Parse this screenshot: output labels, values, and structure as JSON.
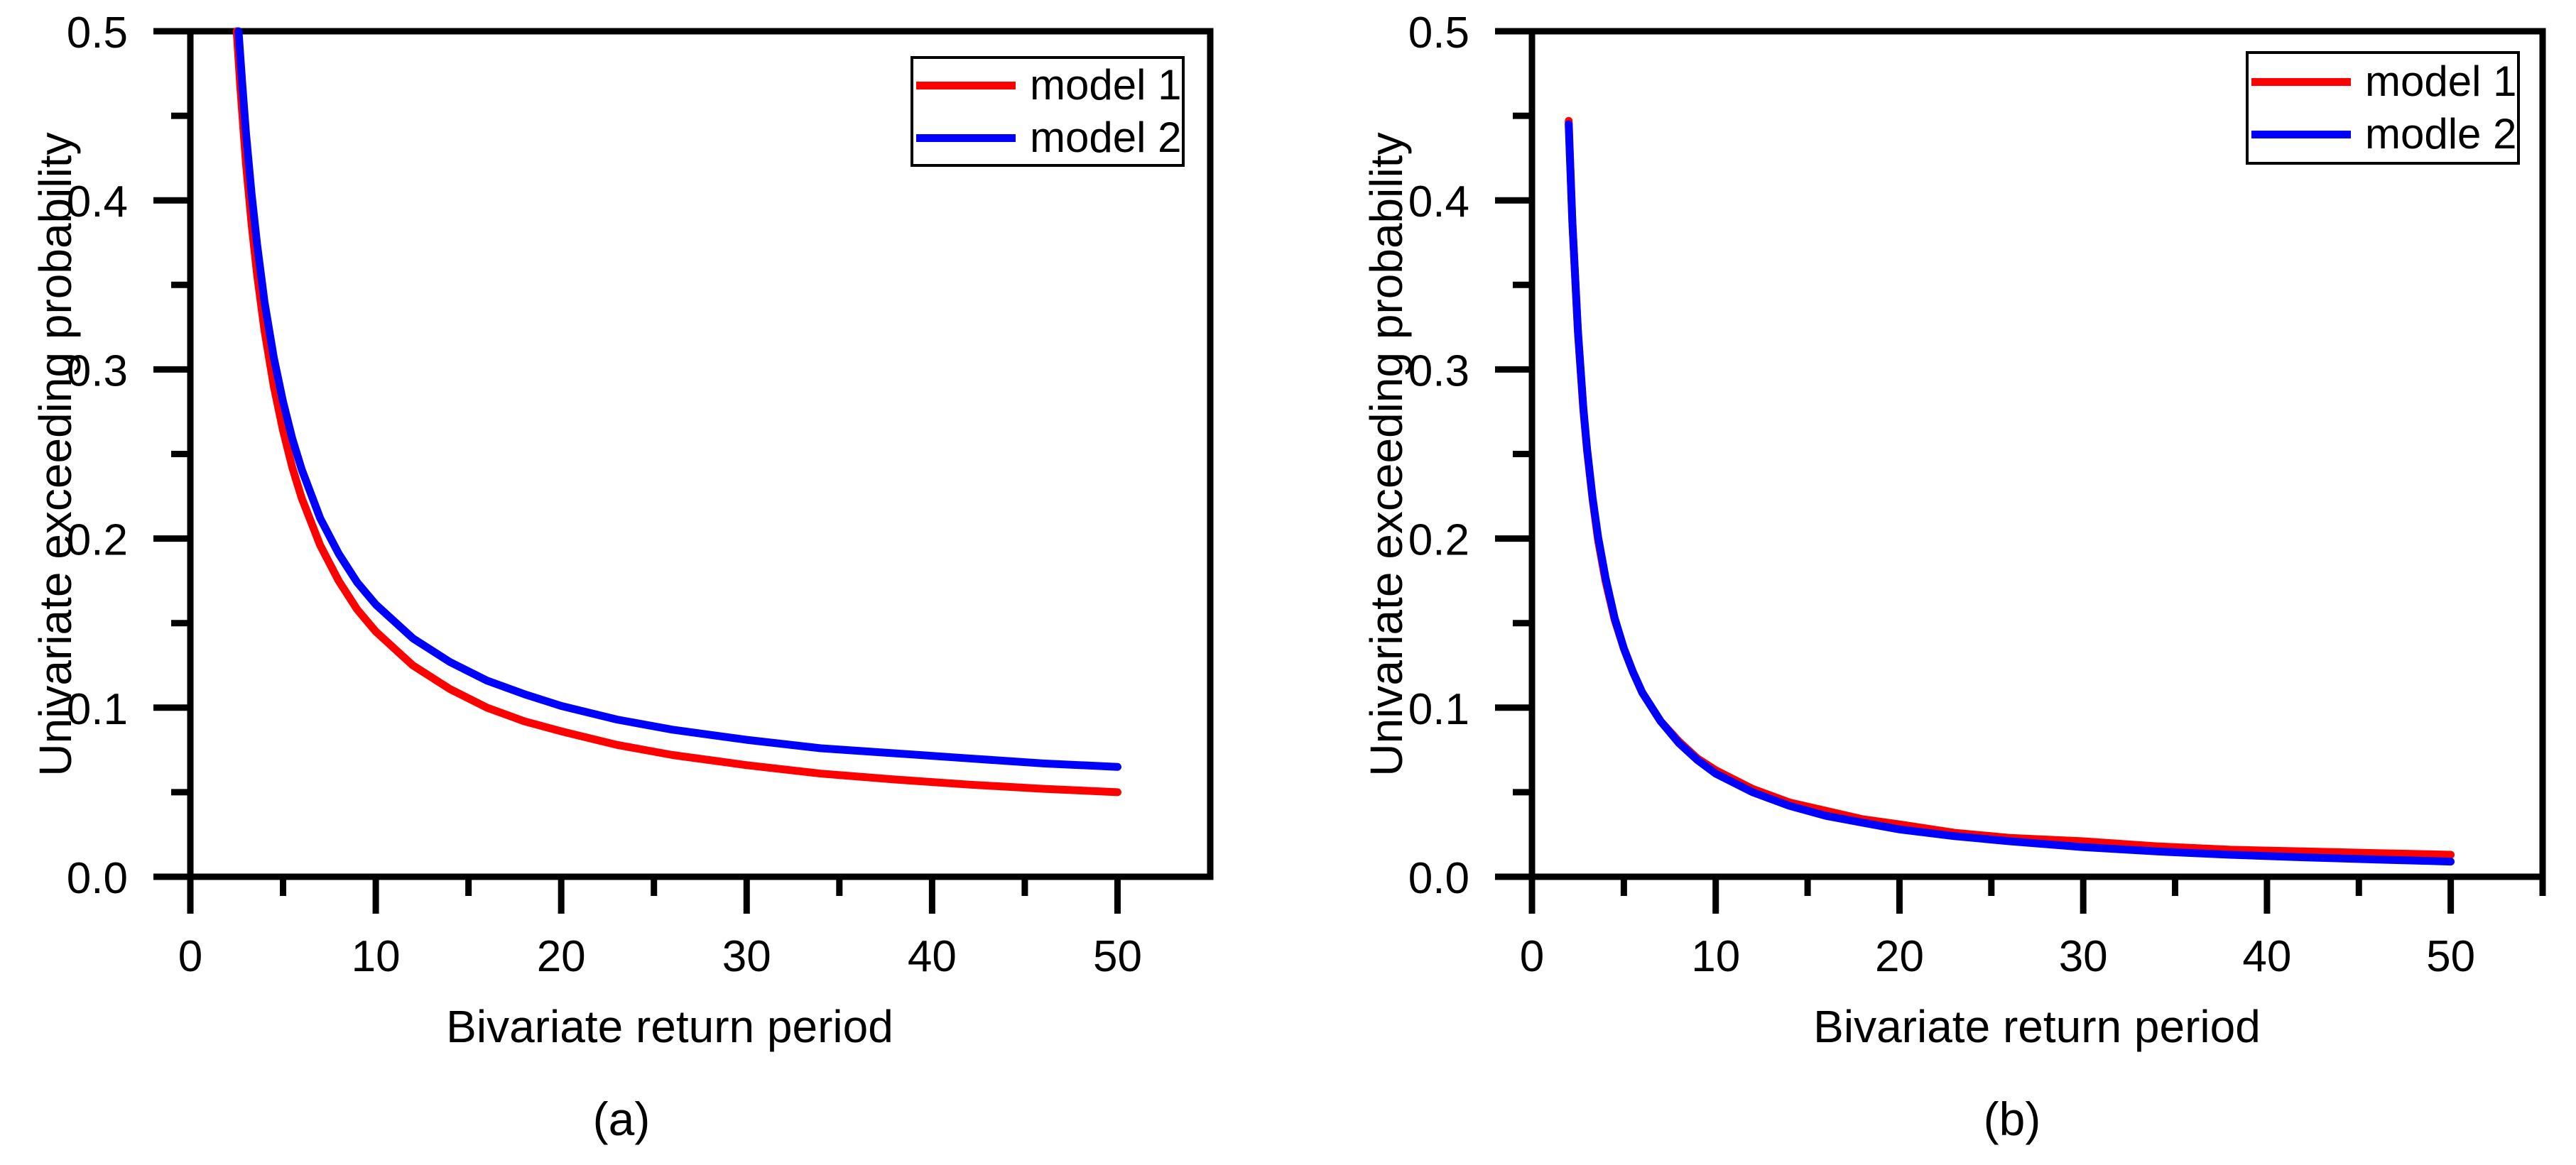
{
  "figure": {
    "background": "#ffffff",
    "axis_color": "#000000",
    "text_color": "#000000"
  },
  "chart_data": [
    {
      "type": "line",
      "panel": "a",
      "caption": "(a)",
      "xlabel": "Bivariate return period",
      "ylabel": "Univariate exceeding probability",
      "xlim": [
        0,
        55
      ],
      "ylim": [
        0,
        0.5
      ],
      "grid": false,
      "xticks_major": [
        0,
        10,
        20,
        30,
        40,
        50
      ],
      "xtick_labels": [
        "0",
        "10",
        "20",
        "30",
        "40",
        "50"
      ],
      "xticks_minor": [
        5,
        15,
        25,
        35,
        45
      ],
      "yticks_major": [
        0,
        0.1,
        0.2,
        0.3,
        0.4,
        0.5
      ],
      "ytick_labels": [
        "0.0",
        "0.1",
        "0.2",
        "0.3",
        "0.4",
        "0.5"
      ],
      "yticks_minor": [
        0.05,
        0.15,
        0.25,
        0.35,
        0.45
      ],
      "legend": {
        "position": "top-right",
        "entries": [
          {
            "label": "model 1",
            "color": "#ff0000"
          },
          {
            "label": "model 2",
            "color": "#0000ff"
          }
        ]
      },
      "series": [
        {
          "name": "model 1",
          "color": "#ff0000",
          "points": [
            [
              2.5,
              0.5
            ],
            [
              2.7,
              0.466
            ],
            [
              3,
              0.422
            ],
            [
              3.3,
              0.386
            ],
            [
              3.6,
              0.356
            ],
            [
              4,
              0.323
            ],
            [
              4.5,
              0.29
            ],
            [
              5,
              0.264
            ],
            [
              5.5,
              0.242
            ],
            [
              6,
              0.224
            ],
            [
              7,
              0.196
            ],
            [
              8,
              0.175
            ],
            [
              9,
              0.158
            ],
            [
              10,
              0.145
            ],
            [
              12,
              0.125
            ],
            [
              14,
              0.111
            ],
            [
              16,
              0.1
            ],
            [
              18,
              0.092
            ],
            [
              20,
              0.086
            ],
            [
              23,
              0.078
            ],
            [
              26,
              0.072
            ],
            [
              30,
              0.066
            ],
            [
              34,
              0.061
            ],
            [
              38,
              0.0575
            ],
            [
              42,
              0.0545
            ],
            [
              46,
              0.052
            ],
            [
              50,
              0.05
            ]
          ]
        },
        {
          "name": "model 2",
          "color": "#0000ff",
          "points": [
            [
              2.6,
              0.5
            ],
            [
              2.8,
              0.469
            ],
            [
              3,
              0.44
            ],
            [
              3.3,
              0.404
            ],
            [
              3.6,
              0.374
            ],
            [
              4,
              0.34
            ],
            [
              4.5,
              0.307
            ],
            [
              5,
              0.281
            ],
            [
              5.5,
              0.259
            ],
            [
              6,
              0.241
            ],
            [
              7,
              0.212
            ],
            [
              8,
              0.191
            ],
            [
              9,
              0.174
            ],
            [
              10,
              0.161
            ],
            [
              12,
              0.141
            ],
            [
              14,
              0.127
            ],
            [
              16,
              0.116
            ],
            [
              18,
              0.108
            ],
            [
              20,
              0.101
            ],
            [
              23,
              0.093
            ],
            [
              26,
              0.087
            ],
            [
              30,
              0.081
            ],
            [
              34,
              0.076
            ],
            [
              38,
              0.073
            ],
            [
              42,
              0.07
            ],
            [
              46,
              0.067
            ],
            [
              50,
              0.065
            ]
          ]
        }
      ]
    },
    {
      "type": "line",
      "panel": "b",
      "caption": "(b)",
      "xlabel": "Bivariate return period",
      "ylabel": "Univariate exceeding probability",
      "xlim": [
        0,
        55
      ],
      "ylim": [
        0,
        0.5
      ],
      "grid": false,
      "xticks_major": [
        0,
        10,
        20,
        30,
        40,
        50
      ],
      "xtick_labels": [
        "0",
        "10",
        "20",
        "30",
        "40",
        "50"
      ],
      "xticks_minor": [
        5,
        15,
        25,
        35,
        45,
        55
      ],
      "yticks_major": [
        0,
        0.1,
        0.2,
        0.3,
        0.4,
        0.5
      ],
      "ytick_labels": [
        "0.0",
        "0.1",
        "0.2",
        "0.3",
        "0.4",
        "0.5"
      ],
      "yticks_minor": [
        0.05,
        0.15,
        0.25,
        0.35,
        0.45
      ],
      "legend": {
        "position": "top-right",
        "entries": [
          {
            "label": "model 1",
            "color": "#ff0000"
          },
          {
            "label": "modle 2",
            "color": "#0000ff"
          }
        ]
      },
      "series": [
        {
          "name": "model 1",
          "color": "#ff0000",
          "points": [
            [
              2,
              0.447
            ],
            [
              2.2,
              0.387
            ],
            [
              2.5,
              0.322
            ],
            [
              2.8,
              0.276
            ],
            [
              3,
              0.252
            ],
            [
              3.3,
              0.223
            ],
            [
              3.6,
              0.199
            ],
            [
              4,
              0.175
            ],
            [
              4.5,
              0.152
            ],
            [
              5,
              0.135
            ],
            [
              5.5,
              0.121
            ],
            [
              6,
              0.109
            ],
            [
              7,
              0.092
            ],
            [
              8,
              0.08
            ],
            [
              9,
              0.07
            ],
            [
              10,
              0.063
            ],
            [
              12,
              0.052
            ],
            [
              14,
              0.044
            ],
            [
              16,
              0.039
            ],
            [
              18,
              0.034
            ],
            [
              20,
              0.031
            ],
            [
              23,
              0.026
            ],
            [
              26,
              0.023
            ],
            [
              30,
              0.021
            ],
            [
              34,
              0.018
            ],
            [
              38,
              0.016
            ],
            [
              42,
              0.015
            ],
            [
              46,
              0.014
            ],
            [
              50,
              0.013
            ]
          ]
        },
        {
          "name": "model 2",
          "color": "#0000ff",
          "points": [
            [
              2,
              0.445
            ],
            [
              2.2,
              0.387
            ],
            [
              2.5,
              0.323
            ],
            [
              2.8,
              0.277
            ],
            [
              3,
              0.253
            ],
            [
              3.3,
              0.224
            ],
            [
              3.6,
              0.201
            ],
            [
              4,
              0.177
            ],
            [
              4.5,
              0.153
            ],
            [
              5,
              0.135
            ],
            [
              5.5,
              0.121
            ],
            [
              6,
              0.109
            ],
            [
              7,
              0.092
            ],
            [
              8,
              0.079
            ],
            [
              9,
              0.069
            ],
            [
              10,
              0.061
            ],
            [
              12,
              0.05
            ],
            [
              14,
              0.042
            ],
            [
              16,
              0.036
            ],
            [
              18,
              0.032
            ],
            [
              20,
              0.028
            ],
            [
              23,
              0.024
            ],
            [
              26,
              0.021
            ],
            [
              30,
              0.0175
            ],
            [
              34,
              0.015
            ],
            [
              38,
              0.013
            ],
            [
              42,
              0.0115
            ],
            [
              46,
              0.0102
            ],
            [
              50,
              0.009
            ]
          ]
        }
      ]
    }
  ]
}
